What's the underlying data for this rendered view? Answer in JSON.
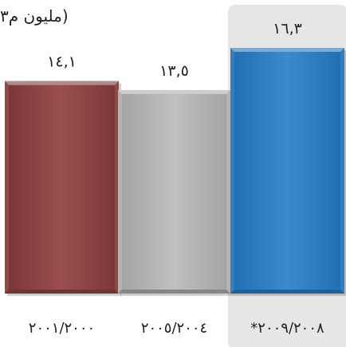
{
  "chart_data": {
    "type": "bar",
    "unit_label": "(مليون م٣",
    "categories": [
      "٢٠٠١/٢٠٠٠",
      "٢٠٠٥/٢٠٠٤",
      "*٢٠٠٩/٢٠٠٨"
    ],
    "values": [
      14.1,
      13.5,
      16.3
    ],
    "value_labels": [
      "١٤,١",
      "١٣,٥",
      "١٦,٣"
    ],
    "highlighted_category": "*٢٠٠٩/٢٠٠٨",
    "bar_colors": [
      "#8e4a49",
      "#b3b3b3",
      "#2f7fc3"
    ],
    "highlight_color": "#e6e6e6",
    "ylim": [
      0,
      16.3
    ],
    "grid": false,
    "legend": "none"
  }
}
